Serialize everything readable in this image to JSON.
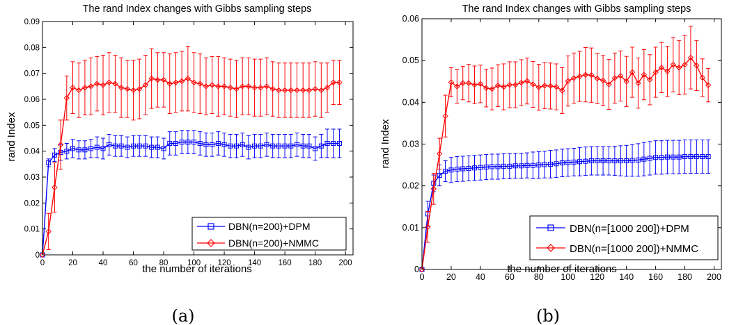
{
  "panels": [
    {
      "caption": "(a)",
      "chart_data": {
        "type": "line",
        "title": "The rand Index changes with Gibbs sampling steps",
        "xlabel": "the number of iterations",
        "ylabel": "rand Index",
        "xlim": [
          0,
          205
        ],
        "ylim": [
          0,
          0.09
        ],
        "xticks": [
          0,
          20,
          40,
          60,
          80,
          100,
          120,
          140,
          160,
          180,
          200
        ],
        "yticks": [
          0,
          0.01,
          0.02,
          0.03,
          0.04,
          0.05,
          0.06,
          0.07,
          0.08,
          0.09
        ],
        "grid": false,
        "legend_position": "lower-right",
        "series": [
          {
            "name": "DBN(n=200)+DPM",
            "color": "#0000ff",
            "marker": "square",
            "x": [
              0,
              4,
              8,
              12,
              16,
              20,
              24,
              28,
              32,
              36,
              40,
              44,
              48,
              52,
              56,
              60,
              64,
              68,
              72,
              76,
              80,
              84,
              88,
              92,
              96,
              100,
              104,
              108,
              112,
              116,
              120,
              124,
              128,
              132,
              136,
              140,
              144,
              148,
              152,
              156,
              160,
              164,
              168,
              172,
              176,
              180,
              184,
              188,
              192,
              196
            ],
            "y": [
              0,
              0.0355,
              0.0385,
              0.0395,
              0.04,
              0.041,
              0.0405,
              0.0405,
              0.041,
              0.0415,
              0.041,
              0.0425,
              0.042,
              0.042,
              0.0415,
              0.042,
              0.042,
              0.042,
              0.0415,
              0.0415,
              0.041,
              0.043,
              0.043,
              0.0435,
              0.0435,
              0.0435,
              0.043,
              0.0425,
              0.0425,
              0.043,
              0.0425,
              0.042,
              0.042,
              0.0425,
              0.0415,
              0.042,
              0.042,
              0.0425,
              0.042,
              0.042,
              0.042,
              0.042,
              0.0425,
              0.042,
              0.042,
              0.041,
              0.042,
              0.043,
              0.043,
              0.043
            ],
            "err": [
              0,
              0.0015,
              0.0025,
              0.003,
              0.003,
              0.0035,
              0.0035,
              0.0035,
              0.0035,
              0.004,
              0.004,
              0.004,
              0.004,
              0.004,
              0.004,
              0.004,
              0.004,
              0.004,
              0.004,
              0.004,
              0.004,
              0.0045,
              0.0045,
              0.0045,
              0.0045,
              0.0045,
              0.0045,
              0.0045,
              0.0045,
              0.0045,
              0.0045,
              0.0045,
              0.0045,
              0.0045,
              0.0045,
              0.0045,
              0.0045,
              0.0045,
              0.0045,
              0.0045,
              0.0045,
              0.0045,
              0.0045,
              0.0045,
              0.0045,
              0.0045,
              0.0045,
              0.0055,
              0.0055,
              0.0055
            ]
          },
          {
            "name": "DBN(n=200)+NMMC",
            "color": "#ff0000",
            "marker": "diamond",
            "x": [
              0,
              4,
              8,
              12,
              16,
              20,
              24,
              28,
              32,
              36,
              40,
              44,
              48,
              52,
              56,
              60,
              64,
              68,
              72,
              76,
              80,
              84,
              88,
              92,
              96,
              100,
              104,
              108,
              112,
              116,
              120,
              124,
              128,
              132,
              136,
              140,
              144,
              148,
              152,
              156,
              160,
              164,
              168,
              172,
              176,
              180,
              184,
              188,
              192,
              196
            ],
            "y": [
              0,
              0.009,
              0.026,
              0.0425,
              0.0605,
              0.0645,
              0.0635,
              0.0645,
              0.065,
              0.066,
              0.0655,
              0.0665,
              0.066,
              0.0645,
              0.064,
              0.0635,
              0.064,
              0.0655,
              0.068,
              0.0675,
              0.0675,
              0.066,
              0.0665,
              0.067,
              0.068,
              0.0665,
              0.066,
              0.065,
              0.0655,
              0.065,
              0.065,
              0.0645,
              0.064,
              0.065,
              0.065,
              0.0645,
              0.0645,
              0.065,
              0.064,
              0.0635,
              0.0635,
              0.0635,
              0.0635,
              0.0635,
              0.0635,
              0.064,
              0.0635,
              0.0645,
              0.0665,
              0.0665
            ],
            "err": [
              0,
              0.007,
              0.0095,
              0.0095,
              0.0085,
              0.01,
              0.0105,
              0.0105,
              0.011,
              0.0105,
              0.0115,
              0.0115,
              0.011,
              0.0115,
              0.011,
              0.0115,
              0.0115,
              0.0115,
              0.0115,
              0.0105,
              0.0105,
              0.0115,
              0.0115,
              0.0115,
              0.0125,
              0.0115,
              0.0115,
              0.011,
              0.011,
              0.0115,
              0.011,
              0.011,
              0.011,
              0.011,
              0.011,
              0.011,
              0.011,
              0.011,
              0.0105,
              0.0105,
              0.0105,
              0.0105,
              0.0105,
              0.0105,
              0.0105,
              0.0105,
              0.0105,
              0.0095,
              0.0085,
              0.0085
            ]
          }
        ]
      }
    },
    {
      "caption": "(b)",
      "chart_data": {
        "type": "line",
        "title": "The rand Index changes with Gibbs sampling steps",
        "xlabel": "the number of iterations",
        "ylabel": "rand Index",
        "xlim": [
          0,
          205
        ],
        "ylim": [
          0,
          0.06
        ],
        "xticks": [
          0,
          20,
          40,
          60,
          80,
          100,
          120,
          140,
          160,
          180,
          200
        ],
        "yticks": [
          0,
          0.01,
          0.02,
          0.03,
          0.04,
          0.05,
          0.06
        ],
        "grid": false,
        "legend_position": "lower-right",
        "series": [
          {
            "name": "DBN(n=[1000 200])+DPM",
            "color": "#0000ff",
            "marker": "square",
            "x": [
              0,
              4,
              8,
              12,
              16,
              20,
              24,
              28,
              32,
              36,
              40,
              44,
              48,
              52,
              56,
              60,
              64,
              68,
              72,
              76,
              80,
              84,
              88,
              92,
              96,
              100,
              104,
              108,
              112,
              116,
              120,
              124,
              128,
              132,
              136,
              140,
              144,
              148,
              152,
              156,
              160,
              164,
              168,
              172,
              176,
              180,
              184,
              188,
              192,
              196
            ],
            "y": [
              0,
              0.0133,
              0.0206,
              0.0225,
              0.0235,
              0.0238,
              0.024,
              0.0241,
              0.0242,
              0.0243,
              0.0244,
              0.0245,
              0.0246,
              0.0246,
              0.0247,
              0.0247,
              0.0248,
              0.0248,
              0.0249,
              0.0249,
              0.025,
              0.0251,
              0.0252,
              0.0253,
              0.0255,
              0.0256,
              0.0257,
              0.0258,
              0.0259,
              0.026,
              0.026,
              0.026,
              0.026,
              0.026,
              0.026,
              0.026,
              0.0261,
              0.0262,
              0.0264,
              0.0266,
              0.0268,
              0.0268,
              0.0269,
              0.0269,
              0.0269,
              0.027,
              0.027,
              0.027,
              0.027,
              0.027
            ],
            "err": [
              0,
              0.003,
              0.002,
              0.0025,
              0.0025,
              0.003,
              0.003,
              0.003,
              0.003,
              0.003,
              0.003,
              0.003,
              0.003,
              0.003,
              0.003,
              0.003,
              0.003,
              0.003,
              0.003,
              0.0032,
              0.0032,
              0.0032,
              0.0033,
              0.0033,
              0.0033,
              0.0033,
              0.0033,
              0.0034,
              0.0034,
              0.0034,
              0.0034,
              0.0034,
              0.0034,
              0.0035,
              0.0036,
              0.0037,
              0.0038,
              0.0039,
              0.004,
              0.004,
              0.004,
              0.004,
              0.004,
              0.004,
              0.004,
              0.004,
              0.004,
              0.004,
              0.004,
              0.004
            ]
          },
          {
            "name": "DBN(n=[1000 200])+NMMC",
            "color": "#ff0000",
            "marker": "diamond",
            "x": [
              0,
              4,
              8,
              12,
              16,
              20,
              24,
              28,
              32,
              36,
              40,
              44,
              48,
              52,
              56,
              60,
              64,
              68,
              72,
              76,
              80,
              84,
              88,
              92,
              96,
              100,
              104,
              108,
              112,
              116,
              120,
              124,
              128,
              132,
              136,
              140,
              144,
              148,
              152,
              156,
              160,
              164,
              168,
              172,
              176,
              180,
              184,
              188,
              192,
              196
            ],
            "y": [
              0,
              0.0102,
              0.0193,
              0.0277,
              0.0367,
              0.0448,
              0.0438,
              0.0446,
              0.0446,
              0.0442,
              0.0444,
              0.0434,
              0.0432,
              0.044,
              0.0437,
              0.0442,
              0.0442,
              0.0447,
              0.0451,
              0.0443,
              0.0436,
              0.044,
              0.0439,
              0.0437,
              0.0428,
              0.0451,
              0.0458,
              0.0462,
              0.0466,
              0.0465,
              0.0457,
              0.0452,
              0.0443,
              0.0458,
              0.0463,
              0.045,
              0.0472,
              0.0446,
              0.0466,
              0.0454,
              0.0472,
              0.0483,
              0.0474,
              0.049,
              0.0483,
              0.049,
              0.0507,
              0.0488,
              0.0459,
              0.0441
            ],
            "err": [
              0,
              0.0037,
              0.0037,
              0.0037,
              0.005,
              0.0035,
              0.004,
              0.004,
              0.0045,
              0.0045,
              0.0045,
              0.0045,
              0.005,
              0.005,
              0.0055,
              0.0055,
              0.0055,
              0.0055,
              0.0055,
              0.0055,
              0.0055,
              0.0055,
              0.0055,
              0.0055,
              0.0055,
              0.006,
              0.006,
              0.006,
              0.0065,
              0.0065,
              0.006,
              0.006,
              0.006,
              0.006,
              0.006,
              0.006,
              0.006,
              0.006,
              0.006,
              0.006,
              0.006,
              0.006,
              0.006,
              0.0065,
              0.0065,
              0.007,
              0.0075,
              0.006,
              0.0045,
              0.004
            ]
          }
        ]
      }
    }
  ]
}
